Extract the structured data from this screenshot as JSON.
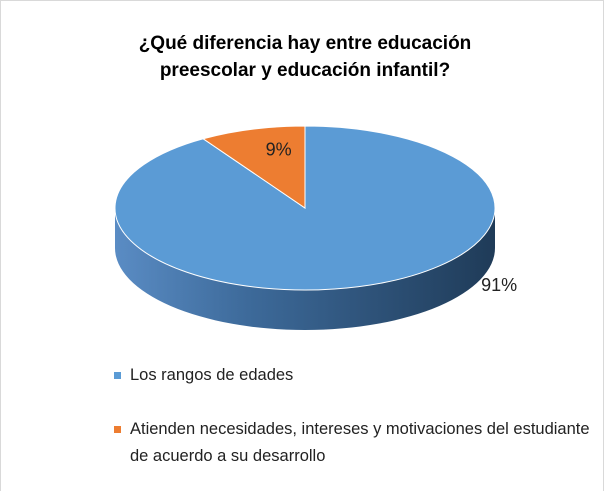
{
  "chart_data": {
    "type": "pie",
    "title": "¿Qué diferencia hay entre educación preescolar y educación infantil?",
    "categories": [
      "Los rangos de edades",
      "Atienden necesidades, intereses y motivaciones del estudiante de acuerdo a su desarrollo"
    ],
    "values": [
      91,
      9
    ],
    "value_labels": [
      "91%",
      "9%"
    ],
    "colors": [
      "#5b9bd5",
      "#ed7d31"
    ],
    "legend": "bottom"
  }
}
